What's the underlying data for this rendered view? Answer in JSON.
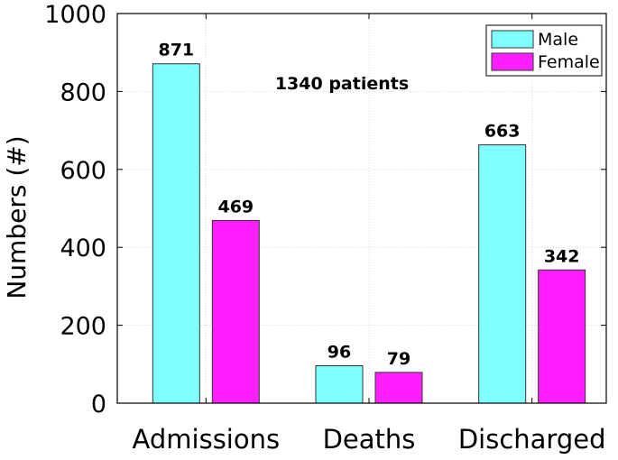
{
  "chart_data": {
    "type": "bar",
    "title": "",
    "xlabel": "",
    "ylabel": "Numbers (#)",
    "categories": [
      "Admissions",
      "Deaths",
      "Discharged"
    ],
    "series": [
      {
        "name": "Male",
        "color": "#7fffff",
        "values": [
          871,
          96,
          663
        ],
        "labels": [
          "871",
          "96",
          "663"
        ]
      },
      {
        "name": "Female",
        "color": "#ff1fff",
        "values": [
          469,
          79,
          342
        ],
        "labels": [
          "469",
          "79",
          "342"
        ]
      }
    ],
    "ylim": [
      0,
      1000
    ],
    "yticks": [
      0,
      200,
      400,
      600,
      800,
      1000
    ],
    "ytick_labels": [
      "0",
      "200",
      "400",
      "600",
      "800",
      "1000"
    ],
    "grid": true,
    "legend": "top-right",
    "annotation": "1340 patients"
  }
}
